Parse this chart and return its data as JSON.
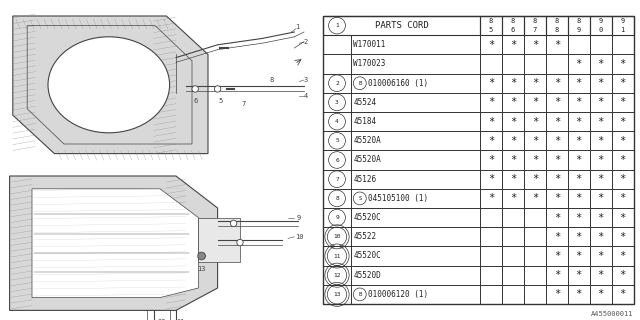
{
  "title": "A455000011",
  "parts_cord_header": "PARTS CORD",
  "col_headers": [
    "8\n5",
    "8\n6",
    "8\n7",
    "8\n8",
    "8\n9",
    "9\n0",
    "9\n1"
  ],
  "rows": [
    {
      "num": "1",
      "prefix": "",
      "part": "W170011",
      "marks": [
        1,
        1,
        1,
        1,
        0,
        0,
        0
      ]
    },
    {
      "num": "1",
      "prefix": "",
      "part": "W170023",
      "marks": [
        0,
        0,
        0,
        0,
        1,
        1,
        1
      ]
    },
    {
      "num": "2",
      "prefix": "B",
      "part": "010006160 (1)",
      "marks": [
        1,
        1,
        1,
        1,
        1,
        1,
        1
      ]
    },
    {
      "num": "3",
      "prefix": "",
      "part": "45524",
      "marks": [
        1,
        1,
        1,
        1,
        1,
        1,
        1
      ]
    },
    {
      "num": "4",
      "prefix": "",
      "part": "45184",
      "marks": [
        1,
        1,
        1,
        1,
        1,
        1,
        1
      ]
    },
    {
      "num": "5",
      "prefix": "",
      "part": "45520A",
      "marks": [
        1,
        1,
        1,
        1,
        1,
        1,
        1
      ]
    },
    {
      "num": "6",
      "prefix": "",
      "part": "45520A",
      "marks": [
        1,
        1,
        1,
        1,
        1,
        1,
        1
      ]
    },
    {
      "num": "7",
      "prefix": "",
      "part": "45126",
      "marks": [
        1,
        1,
        1,
        1,
        1,
        1,
        1
      ]
    },
    {
      "num": "8",
      "prefix": "S",
      "part": "045105100 (1)",
      "marks": [
        1,
        1,
        1,
        1,
        1,
        1,
        1
      ]
    },
    {
      "num": "9",
      "prefix": "",
      "part": "45520C",
      "marks": [
        0,
        0,
        0,
        1,
        1,
        1,
        1
      ]
    },
    {
      "num": "10",
      "prefix": "",
      "part": "45522",
      "marks": [
        0,
        0,
        0,
        1,
        1,
        1,
        1
      ]
    },
    {
      "num": "11",
      "prefix": "",
      "part": "45520C",
      "marks": [
        0,
        0,
        0,
        1,
        1,
        1,
        1
      ]
    },
    {
      "num": "12",
      "prefix": "",
      "part": "45520D",
      "marks": [
        0,
        0,
        0,
        1,
        1,
        1,
        1
      ]
    },
    {
      "num": "13",
      "prefix": "B",
      "part": "010006120 (1)",
      "marks": [
        0,
        0,
        0,
        1,
        1,
        1,
        1
      ]
    }
  ],
  "bg_color": "#ffffff",
  "line_color": "#444444",
  "hatch_color": "#888888",
  "diagram_split": 0.5
}
